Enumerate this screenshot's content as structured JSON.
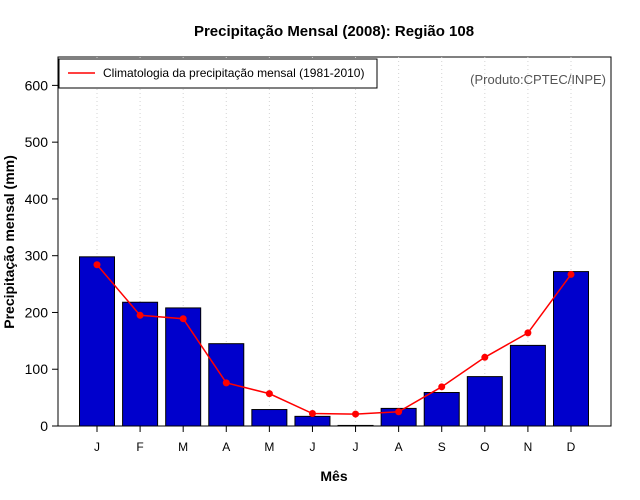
{
  "chart_data": {
    "type": "bar",
    "title": "Precipitação Mensal (2008): Região 108",
    "xlabel": "Mês",
    "ylabel": "Precipitação mensal (mm)",
    "ylim": [
      0,
      650
    ],
    "yticks": [
      0,
      100,
      200,
      300,
      400,
      500,
      600
    ],
    "categories": [
      "J",
      "F",
      "M",
      "A",
      "M",
      "J",
      "J",
      "A",
      "S",
      "O",
      "N",
      "D"
    ],
    "series": [
      {
        "name": "Precipitação mensal (2008)",
        "kind": "bar",
        "color": "#0000cc",
        "values": [
          298,
          218,
          208,
          145,
          29,
          17,
          1,
          31,
          59,
          87,
          142,
          272
        ]
      },
      {
        "name": "Climatologia da precipitação mensal (1981-2010)",
        "kind": "line",
        "color": "#ff0000",
        "values": [
          284,
          195,
          189,
          76,
          57,
          22,
          21,
          25,
          69,
          121,
          164,
          267
        ]
      }
    ],
    "legend": {
      "position": "top-left",
      "entries": [
        "Climatologia da precipitação mensal (1981-2010)"
      ]
    },
    "annotation": "(Produto:CPTEC/INPE)",
    "grid": "vertical-dotted"
  }
}
